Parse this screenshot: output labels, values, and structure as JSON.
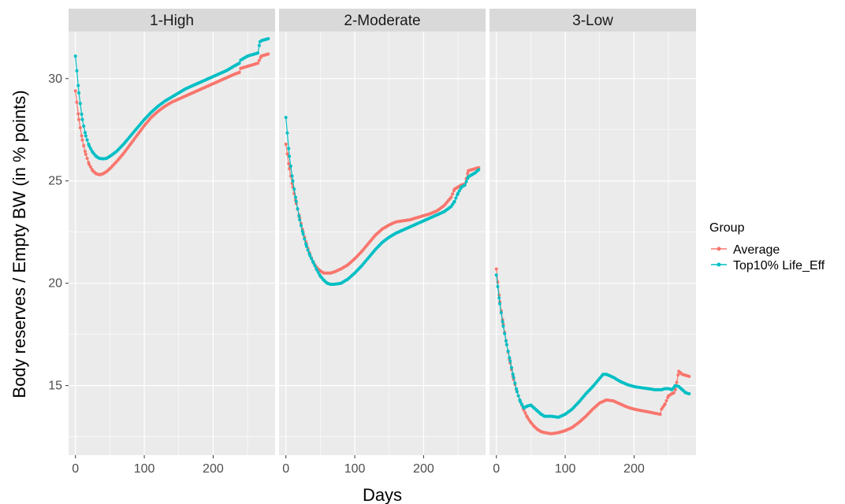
{
  "chart_data": {
    "type": "line",
    "xlabel": "Days",
    "ylabel": "Body reserves / Empty BW (in % points)",
    "xlim": [
      -10,
      290
    ],
    "ylim": [
      11.6,
      32.3
    ],
    "x_ticks": [
      0,
      100,
      200
    ],
    "x_tick_labels": [
      "0",
      "100",
      "200"
    ],
    "y_ticks": [
      15,
      20,
      25,
      30
    ],
    "y_tick_labels": [
      "15",
      "20",
      "25",
      "30"
    ],
    "grid": true,
    "legend": {
      "title": "Group",
      "placement": "right",
      "entries": [
        "Average",
        "Top10% Life_Eff"
      ]
    },
    "colors": {
      "Average": "#F8766D",
      "Top10% Life_Eff": "#00BFC4",
      "panel_bg": "#EBEBEB",
      "strip_bg": "#D9D9D9"
    },
    "panels": [
      {
        "label": "1-High",
        "series": [
          {
            "name": "Average",
            "x": [
              0,
              5,
              10,
              15,
              20,
              25,
              30,
              35,
              40,
              45,
              50,
              60,
              70,
              80,
              90,
              100,
              110,
              120,
              130,
              140,
              150,
              160,
              170,
              180,
              190,
              200,
              210,
              220,
              230,
              238,
              240,
              245,
              250,
              255,
              260,
              265,
              270,
              275,
              280
            ],
            "y": [
              29.4,
              28.0,
              27.0,
              26.3,
              25.8,
              25.5,
              25.35,
              25.3,
              25.35,
              25.45,
              25.6,
              25.95,
              26.35,
              26.8,
              27.25,
              27.7,
              28.1,
              28.4,
              28.65,
              28.85,
              29.0,
              29.15,
              29.3,
              29.45,
              29.6,
              29.75,
              29.9,
              30.05,
              30.2,
              30.3,
              30.5,
              30.55,
              30.6,
              30.65,
              30.7,
              30.75,
              31.1,
              31.15,
              31.2
            ]
          },
          {
            "name": "Top10% Life_Eff",
            "x": [
              0,
              5,
              10,
              15,
              20,
              25,
              30,
              35,
              40,
              45,
              50,
              60,
              70,
              80,
              90,
              100,
              110,
              120,
              130,
              140,
              150,
              160,
              170,
              180,
              190,
              200,
              210,
              220,
              230,
              238,
              240,
              245,
              250,
              255,
              260,
              265,
              268,
              270,
              275,
              280
            ],
            "y": [
              31.1,
              29.3,
              28.0,
              27.2,
              26.7,
              26.4,
              26.2,
              26.1,
              26.08,
              26.1,
              26.2,
              26.45,
              26.8,
              27.2,
              27.6,
              28.0,
              28.35,
              28.65,
              28.9,
              29.1,
              29.3,
              29.5,
              29.65,
              29.8,
              29.95,
              30.1,
              30.25,
              30.4,
              30.6,
              30.75,
              30.9,
              31.0,
              31.1,
              31.15,
              31.2,
              31.25,
              31.8,
              31.85,
              31.9,
              31.95
            ]
          }
        ]
      },
      {
        "label": "2-Moderate",
        "series": [
          {
            "name": "Average",
            "x": [
              0,
              5,
              10,
              15,
              20,
              25,
              30,
              35,
              40,
              45,
              50,
              55,
              60,
              65,
              70,
              80,
              90,
              100,
              110,
              120,
              130,
              140,
              150,
              160,
              170,
              180,
              190,
              200,
              210,
              220,
              230,
              240,
              245,
              250,
              255,
              260,
              265,
              270,
              275,
              280
            ],
            "y": [
              26.8,
              25.6,
              24.7,
              23.9,
              23.2,
              22.5,
              21.9,
              21.4,
              21.0,
              20.75,
              20.6,
              20.5,
              20.5,
              20.5,
              20.55,
              20.7,
              20.9,
              21.2,
              21.55,
              21.95,
              22.35,
              22.65,
              22.85,
              23.0,
              23.05,
              23.1,
              23.2,
              23.3,
              23.4,
              23.55,
              23.8,
              24.2,
              24.6,
              24.7,
              24.8,
              24.85,
              25.5,
              25.55,
              25.6,
              25.65
            ]
          },
          {
            "name": "Top10% Life_Eff",
            "x": [
              0,
              5,
              10,
              15,
              20,
              25,
              30,
              35,
              40,
              45,
              50,
              55,
              60,
              65,
              70,
              80,
              90,
              100,
              110,
              120,
              130,
              140,
              150,
              160,
              170,
              180,
              190,
              200,
              210,
              220,
              230,
              240,
              245,
              250,
              255,
              260,
              265,
              270,
              275,
              280
            ],
            "y": [
              28.1,
              26.2,
              25.0,
              24.0,
              23.1,
              22.4,
              21.8,
              21.35,
              21.0,
              20.65,
              20.35,
              20.15,
              20.0,
              19.95,
              19.95,
              20.0,
              20.2,
              20.5,
              20.85,
              21.25,
              21.65,
              22.0,
              22.25,
              22.45,
              22.6,
              22.75,
              22.9,
              23.05,
              23.2,
              23.35,
              23.5,
              23.75,
              24.0,
              24.4,
              24.7,
              24.8,
              25.2,
              25.3,
              25.4,
              25.55
            ]
          }
        ]
      },
      {
        "label": "3-Low",
        "series": [
          {
            "name": "Average",
            "x": [
              0,
              5,
              10,
              15,
              20,
              25,
              30,
              35,
              40,
              45,
              50,
              55,
              60,
              65,
              70,
              80,
              90,
              100,
              110,
              120,
              130,
              140,
              150,
              160,
              170,
              180,
              190,
              200,
              210,
              220,
              230,
              238,
              240,
              245,
              250,
              255,
              258,
              260,
              265,
              270,
              275,
              280
            ],
            "y": [
              20.7,
              19.1,
              18.0,
              17.0,
              16.1,
              15.3,
              14.7,
              14.2,
              13.8,
              13.45,
              13.2,
              13.0,
              12.85,
              12.75,
              12.7,
              12.65,
              12.7,
              12.8,
              12.95,
              13.2,
              13.5,
              13.85,
              14.15,
              14.3,
              14.25,
              14.1,
              13.95,
              13.85,
              13.78,
              13.72,
              13.65,
              13.6,
              13.85,
              14.1,
              14.5,
              14.6,
              14.65,
              14.8,
              15.7,
              15.55,
              15.5,
              15.45
            ]
          },
          {
            "name": "Top10% Life_Eff",
            "x": [
              0,
              5,
              10,
              15,
              20,
              25,
              30,
              35,
              40,
              45,
              50,
              55,
              60,
              65,
              70,
              80,
              90,
              100,
              110,
              120,
              130,
              140,
              150,
              155,
              160,
              170,
              180,
              190,
              200,
              210,
              220,
              230,
              240,
              245,
              250,
              255,
              260,
              265,
              270,
              275,
              280
            ],
            "y": [
              20.4,
              19.0,
              17.9,
              17.0,
              16.2,
              15.4,
              14.7,
              14.2,
              13.9,
              14.0,
              14.05,
              13.9,
              13.75,
              13.6,
              13.5,
              13.5,
              13.45,
              13.6,
              13.85,
              14.2,
              14.6,
              14.95,
              15.35,
              15.55,
              15.55,
              15.4,
              15.2,
              15.05,
              14.95,
              14.9,
              14.85,
              14.8,
              14.8,
              14.85,
              14.85,
              14.8,
              15.0,
              14.95,
              14.8,
              14.65,
              14.6
            ]
          }
        ]
      }
    ]
  }
}
